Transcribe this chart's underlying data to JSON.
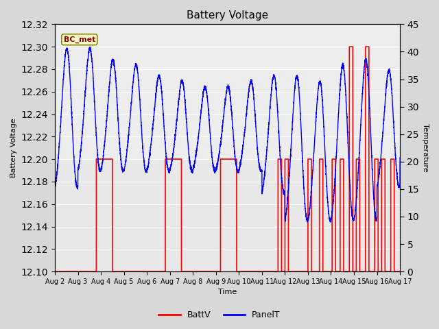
{
  "title": "Battery Voltage",
  "xlabel": "Time",
  "ylabel_left": "Battery Voltage",
  "ylabel_right": "Temperature",
  "xlim_days": [
    0,
    15
  ],
  "ylim_left": [
    12.1,
    12.32
  ],
  "ylim_right": [
    0,
    45
  ],
  "yticks_left": [
    12.1,
    12.12,
    12.14,
    12.16,
    12.18,
    12.2,
    12.22,
    12.24,
    12.26,
    12.28,
    12.3,
    12.32
  ],
  "yticks_right": [
    0,
    5,
    10,
    15,
    20,
    25,
    30,
    35,
    40,
    45
  ],
  "xtick_labels": [
    "Aug 2",
    "Aug 3",
    "Aug 4",
    "Aug 5",
    "Aug 6",
    "Aug 7",
    "Aug 8",
    "Aug 9",
    "Aug 10",
    "Aug 11",
    "Aug 12",
    "Aug 13",
    "Aug 14",
    "Aug 15",
    "Aug 16",
    "Aug 17"
  ],
  "bg_color": "#d8d8d8",
  "plot_bg_color": "#e8e8e8",
  "annotation_text": "BC_met",
  "annotation_bg": "#ffffcc",
  "annotation_border": "#888800",
  "batt_color": "#ff0000",
  "panel_color": "#0000ff",
  "legend_labels": [
    "BattV",
    "PanelT"
  ],
  "batt_t": [
    0,
    0.001,
    1.8,
    1.801,
    2.5,
    2.501,
    4.8,
    4.801,
    5.5,
    5.501,
    7.2,
    7.201,
    7.9,
    7.901,
    9.7,
    9.701,
    9.85,
    9.851,
    10.0,
    10.001,
    10.15,
    10.151,
    11.0,
    11.001,
    11.15,
    11.151,
    11.5,
    11.501,
    11.65,
    11.651,
    12.05,
    12.051,
    12.2,
    12.201,
    12.4,
    12.401,
    12.55,
    12.551,
    12.8,
    12.801,
    12.95,
    12.951,
    13.1,
    13.101,
    13.25,
    13.251,
    13.5,
    13.501,
    13.65,
    13.651,
    13.9,
    13.901,
    14.05,
    14.051,
    14.2,
    14.201,
    14.35,
    14.351,
    14.6,
    14.601,
    14.75,
    14.751,
    15.0
  ],
  "batt_v": [
    12.1,
    12.1,
    12.1,
    12.2,
    12.2,
    12.1,
    12.1,
    12.2,
    12.2,
    12.1,
    12.1,
    12.2,
    12.2,
    12.1,
    12.1,
    12.2,
    12.2,
    12.1,
    12.1,
    12.2,
    12.2,
    12.1,
    12.1,
    12.2,
    12.2,
    12.1,
    12.1,
    12.2,
    12.2,
    12.1,
    12.1,
    12.2,
    12.2,
    12.1,
    12.1,
    12.2,
    12.2,
    12.1,
    12.1,
    12.3,
    12.3,
    12.1,
    12.1,
    12.2,
    12.2,
    12.1,
    12.1,
    12.3,
    12.3,
    12.1,
    12.1,
    12.2,
    12.2,
    12.1,
    12.1,
    12.2,
    12.2,
    12.1,
    12.1,
    12.2,
    12.2,
    12.1,
    12.1
  ]
}
